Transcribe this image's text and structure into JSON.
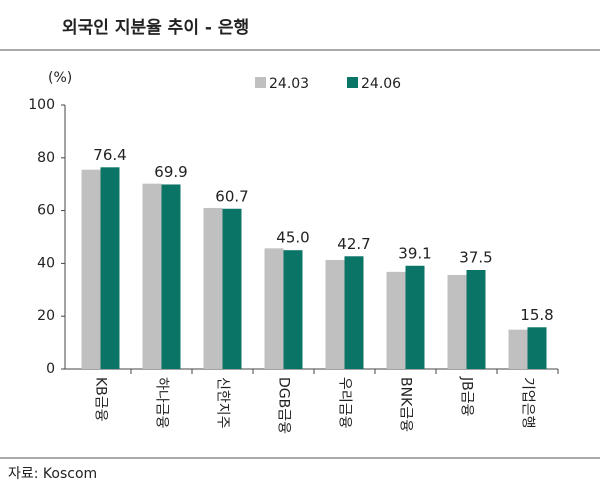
{
  "chart_data": {
    "type": "bar",
    "title": "외국인 지분율 추이 - 은행",
    "y_unit": "(%)",
    "source": "자료: Koscom",
    "categories": [
      "KB금융",
      "하나금융",
      "신한지주",
      "DGB금융",
      "우리금융",
      "BNK금융",
      "JB금융",
      "기업은행"
    ],
    "series": [
      {
        "name": "24.03",
        "color": "#c0c0c0",
        "values": [
          75.5,
          70.2,
          61.0,
          45.7,
          41.3,
          36.8,
          35.6,
          14.9
        ]
      },
      {
        "name": "24.06",
        "color": "#0a7466",
        "values": [
          76.4,
          69.9,
          60.7,
          45.0,
          42.7,
          39.1,
          37.5,
          15.8
        ],
        "value_labels": [
          "76.4",
          "69.9",
          "60.7",
          "45.0",
          "42.7",
          "39.1",
          "37.5",
          "15.8"
        ]
      }
    ],
    "ylim": [
      0,
      100
    ],
    "yticks": [
      0,
      20,
      40,
      60,
      80,
      100
    ],
    "grid": false
  }
}
